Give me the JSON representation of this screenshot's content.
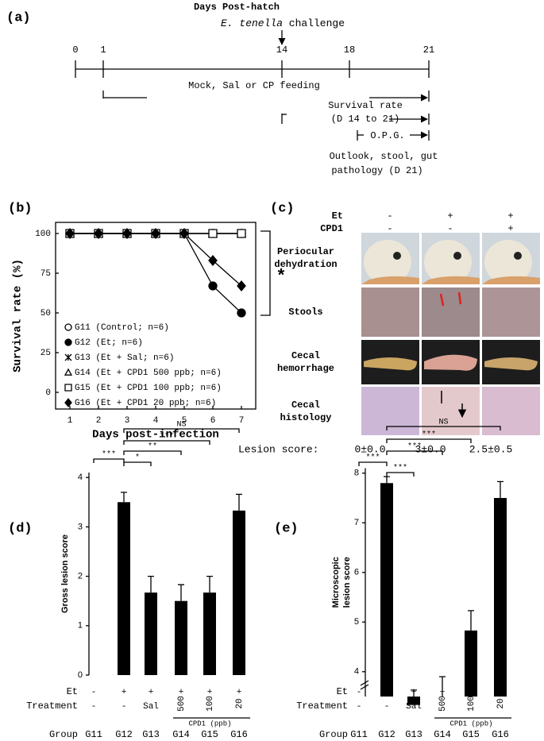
{
  "panel_labels": [
    "(a)",
    "(b)",
    "(c)",
    "(d)",
    "(e)"
  ],
  "timeline": {
    "title": "Days Post-hatch",
    "challenge_organism": "E. tenella",
    "challenge": " challenge",
    "days": [
      0,
      1,
      14,
      18,
      21
    ],
    "feeding": "Mock, Sal or CP feeding",
    "survival": [
      "Survival rate",
      "(D 14 to 21)"
    ],
    "opg": "O.P.G.",
    "outlook": [
      "Outlook, stool, gut",
      "pathology (D 21)"
    ]
  },
  "image_panel": {
    "factors": [
      {
        "label": "Et",
        "values": [
          "-",
          "+",
          "+"
        ]
      },
      {
        "label": "CPD1",
        "values": [
          "-",
          "-",
          "+"
        ]
      }
    ],
    "rows": [
      [
        "Periocular",
        "dehydration"
      ],
      [
        "Stools"
      ],
      [
        "Cecal",
        "hemorrhage"
      ],
      [
        "Cecal",
        "histology"
      ]
    ],
    "lesion_label": "Lesion score:",
    "lesion_scores": [
      "0±0.0",
      "3±0.0",
      "2.5±0.5"
    ]
  },
  "chart_data": [
    {
      "type": "line",
      "y_label": "Survival rate (%)",
      "x_label": "Days post-infection",
      "x": [
        1,
        2,
        3,
        4,
        5,
        6,
        7
      ],
      "xlim": [
        0.5,
        7.5
      ],
      "xticks": [
        1,
        2,
        3,
        4,
        5,
        6,
        7
      ],
      "ylim": [
        -10.5,
        107
      ],
      "yticks": [
        0,
        25,
        50,
        75,
        100
      ],
      "legend": "lower left",
      "annotation": "*",
      "series": [
        {
          "name": "G11 (Control; n=6)",
          "marker": "open-circle",
          "color": "#000000",
          "values": [
            100,
            100,
            100,
            100,
            100,
            100,
            100
          ]
        },
        {
          "name": "G12 (Et; n=6)",
          "marker": "filled-circle",
          "color": "#000000",
          "values": [
            100,
            100,
            100,
            100,
            100,
            67,
            50
          ]
        },
        {
          "name": "G13 (Et + Sal; n=6)",
          "marker": "star",
          "color": "#000000",
          "values": [
            100,
            100,
            100,
            100,
            100,
            100,
            100
          ]
        },
        {
          "name": "G14 (Et + CPD1 500 ppb; n=6)",
          "marker": "open-triangle",
          "color": "#000000",
          "values": [
            100,
            100,
            100,
            100,
            100,
            100,
            100
          ]
        },
        {
          "name": "G15 (Et + CPD1 100 ppb; n=6)",
          "marker": "open-square",
          "color": "#000000",
          "values": [
            100,
            100,
            100,
            100,
            100,
            100,
            100
          ]
        },
        {
          "name": "G16 (Et + CPD1 20 ppb; n=6)",
          "marker": "filled-diamond",
          "color": "#000000",
          "values": [
            100,
            100,
            100,
            100,
            100,
            83,
            67
          ]
        }
      ]
    },
    {
      "type": "bar",
      "y_label": [
        "Gross lesion score"
      ],
      "categories": [
        "G11",
        "G12",
        "G13",
        "G14",
        "G15",
        "G16"
      ],
      "values": [
        0,
        3.5,
        1.67,
        1.5,
        1.67,
        3.33
      ],
      "errors": [
        0,
        0.2,
        0.33,
        0.33,
        0.33,
        0.33
      ],
      "color": "#000000",
      "ylim": [
        0,
        4.1
      ],
      "yticks": [
        0,
        1,
        2,
        3,
        4
      ],
      "significance": [
        "***",
        "*",
        "**",
        "***",
        "NS"
      ],
      "conditions": [
        {
          "label": "Et",
          "values": [
            "-",
            "+",
            "+",
            "+",
            "+",
            "+"
          ]
        },
        {
          "label": "Treatment",
          "values": [
            "-",
            "-",
            "Sal",
            "500",
            "100",
            "20"
          ]
        }
      ],
      "treatment_group": "CPD1 (ppb)",
      "group_label": "Group"
    },
    {
      "type": "bar",
      "y_label": [
        "Microscopic",
        "lesion score"
      ],
      "categories": [
        "G11",
        "G12",
        "G13",
        "G14",
        "G15",
        "G16"
      ],
      "values": [
        null,
        7.8,
        3.33,
        3.5,
        4.83,
        7.5
      ],
      "errors": [
        null,
        0.13,
        0.3,
        0.4,
        0.4,
        0.33
      ],
      "color": "#000000",
      "ylim": [
        3.5,
        8.1
      ],
      "yticks": [
        4,
        5,
        6,
        7,
        8
      ],
      "axis_break": true,
      "significance": [
        "***",
        "***",
        "***",
        "***",
        "NS"
      ],
      "conditions": [
        {
          "label": "Et",
          "values": [
            "-",
            "+",
            "+",
            "+",
            "+",
            "+"
          ]
        },
        {
          "label": "Treatment",
          "values": [
            "-",
            "-",
            "Sal",
            "500",
            "100",
            "20"
          ]
        }
      ],
      "treatment_group": "CPD1 (ppb)",
      "group_label": "Group"
    }
  ]
}
